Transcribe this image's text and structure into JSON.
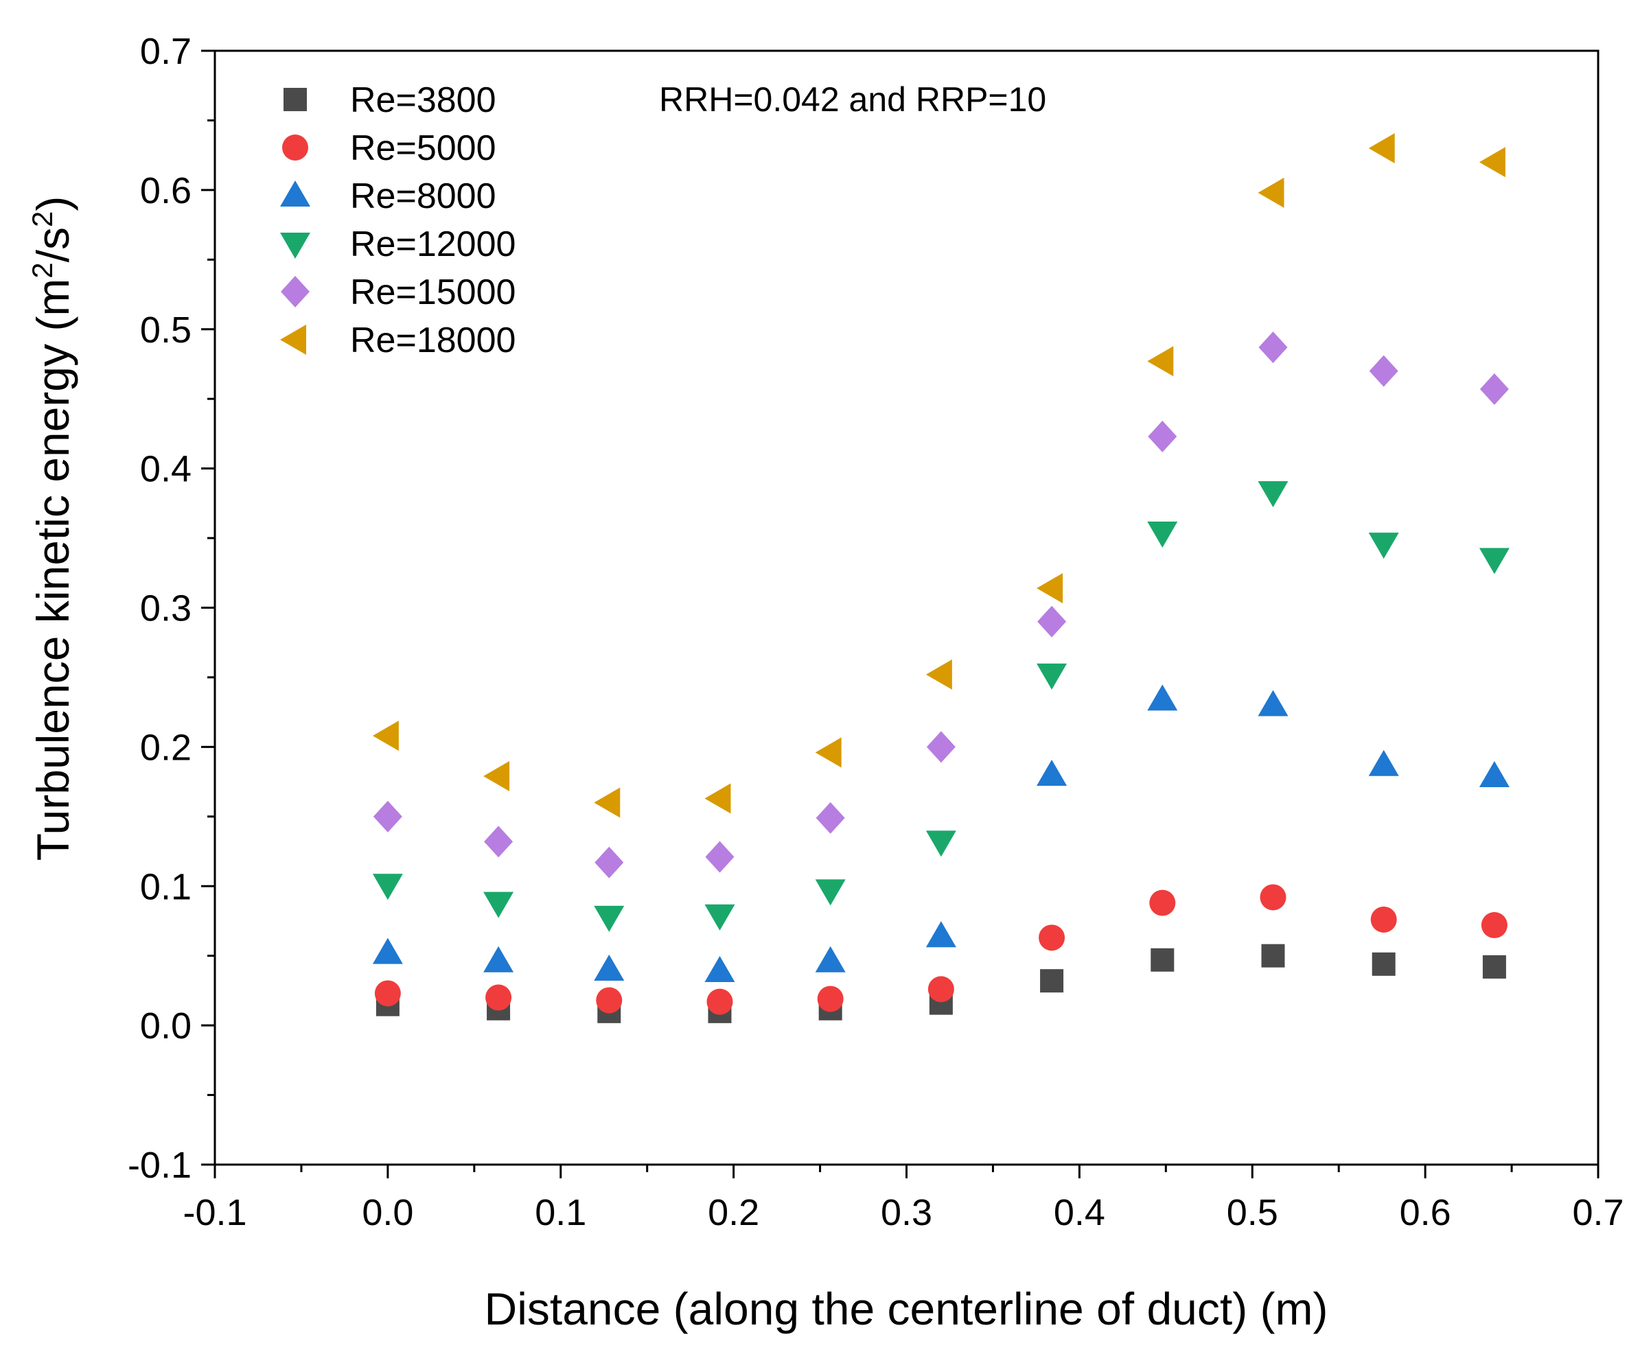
{
  "chart_data": {
    "type": "scatter",
    "xlabel": "Distance (along the centerline of duct) (m)",
    "ylabel_main": "Turbulence kinetic energy (m",
    "ylabel_sup1": "2",
    "ylabel_mid": "/s",
    "ylabel_sup2": "2",
    "ylabel_end": ")",
    "annotation": "RRH=0.042 and RRP=10",
    "xlim": [
      -0.1,
      0.7
    ],
    "ylim": [
      -0.1,
      0.7
    ],
    "x_ticks": [
      -0.1,
      0.0,
      0.1,
      0.2,
      0.3,
      0.4,
      0.5,
      0.6,
      0.7
    ],
    "y_ticks": [
      -0.1,
      0.0,
      0.1,
      0.2,
      0.3,
      0.4,
      0.5,
      0.6,
      0.7
    ],
    "x_tick_labels": [
      "-0.1",
      "0.0",
      "0.1",
      "0.2",
      "0.3",
      "0.4",
      "0.5",
      "0.6",
      "0.7"
    ],
    "y_tick_labels": [
      "-0.1",
      "0.0",
      "0.1",
      "0.2",
      "0.3",
      "0.4",
      "0.5",
      "0.6",
      "0.7"
    ],
    "legend_position": "top-left",
    "x": [
      0.0,
      0.064,
      0.128,
      0.192,
      0.256,
      0.32,
      0.384,
      0.448,
      0.512,
      0.576,
      0.64
    ],
    "series": [
      {
        "name": "Re=3800",
        "marker": "square",
        "color": "#4a4a4a",
        "values": [
          0.015,
          0.012,
          0.01,
          0.01,
          0.012,
          0.016,
          0.032,
          0.047,
          0.05,
          0.044,
          0.042
        ]
      },
      {
        "name": "Re=5000",
        "marker": "circle",
        "color": "#f03c3c",
        "values": [
          0.023,
          0.02,
          0.018,
          0.017,
          0.019,
          0.026,
          0.063,
          0.088,
          0.092,
          0.076,
          0.072
        ]
      },
      {
        "name": "Re=8000",
        "marker": "triangle-up",
        "color": "#1f78d1",
        "values": [
          0.052,
          0.046,
          0.04,
          0.039,
          0.046,
          0.064,
          0.18,
          0.234,
          0.23,
          0.187,
          0.179
        ]
      },
      {
        "name": "Re=12000",
        "marker": "triangle-down",
        "color": "#1aa86a",
        "values": [
          0.101,
          0.088,
          0.078,
          0.079,
          0.097,
          0.132,
          0.252,
          0.354,
          0.383,
          0.346,
          0.335
        ]
      },
      {
        "name": "Re=15000",
        "marker": "diamond",
        "color": "#b77de0",
        "values": [
          0.15,
          0.132,
          0.117,
          0.121,
          0.149,
          0.2,
          0.29,
          0.423,
          0.487,
          0.47,
          0.457
        ]
      },
      {
        "name": "Re=18000",
        "marker": "triangle-left",
        "color": "#d89a00",
        "values": [
          0.208,
          0.179,
          0.16,
          0.163,
          0.196,
          0.252,
          0.314,
          0.477,
          0.598,
          0.63,
          0.62
        ]
      }
    ]
  }
}
